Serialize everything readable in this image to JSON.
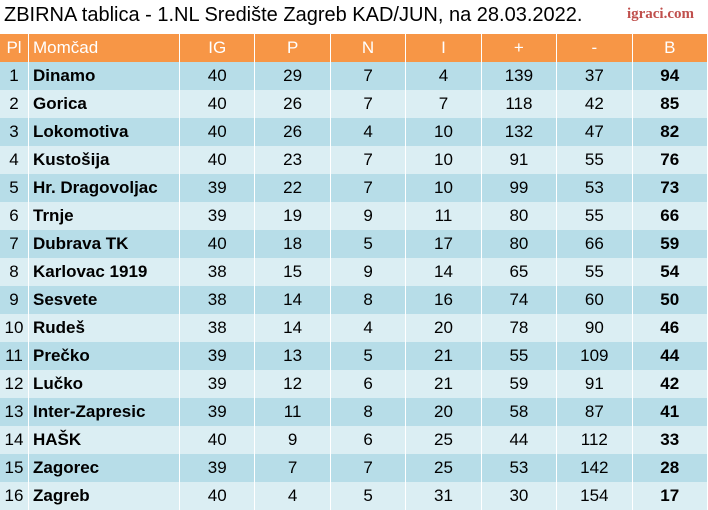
{
  "header": {
    "title": "ZBIRNA tablica - 1.NL Središte Zagreb KAD/JUN, na 28.03.2022.",
    "brand": "igraci.com"
  },
  "columns": [
    "Pl",
    "Momčad",
    "IG",
    "P",
    "N",
    "I",
    "+",
    "-",
    "B"
  ],
  "rows": [
    [
      "1",
      "Dinamo",
      "40",
      "29",
      "7",
      "4",
      "139",
      "37",
      "94"
    ],
    [
      "2",
      "Gorica",
      "40",
      "26",
      "7",
      "7",
      "118",
      "42",
      "85"
    ],
    [
      "3",
      "Lokomotiva",
      "40",
      "26",
      "4",
      "10",
      "132",
      "47",
      "82"
    ],
    [
      "4",
      "Kustošija",
      "40",
      "23",
      "7",
      "10",
      "91",
      "55",
      "76"
    ],
    [
      "5",
      "Hr. Dragovoljac",
      "39",
      "22",
      "7",
      "10",
      "99",
      "53",
      "73"
    ],
    [
      "6",
      "Trnje",
      "39",
      "19",
      "9",
      "11",
      "80",
      "55",
      "66"
    ],
    [
      "7",
      "Dubrava TK",
      "40",
      "18",
      "5",
      "17",
      "80",
      "66",
      "59"
    ],
    [
      "8",
      "Karlovac 1919",
      "38",
      "15",
      "9",
      "14",
      "65",
      "55",
      "54"
    ],
    [
      "9",
      "Sesvete",
      "38",
      "14",
      "8",
      "16",
      "74",
      "60",
      "50"
    ],
    [
      "10",
      "Rudeš",
      "38",
      "14",
      "4",
      "20",
      "78",
      "90",
      "46"
    ],
    [
      "11",
      "Prečko",
      "39",
      "13",
      "5",
      "21",
      "55",
      "109",
      "44"
    ],
    [
      "12",
      "Lučko",
      "39",
      "12",
      "6",
      "21",
      "59",
      "91",
      "42"
    ],
    [
      "13",
      "Inter-Zapresic",
      "39",
      "11",
      "8",
      "20",
      "58",
      "87",
      "41"
    ],
    [
      "14",
      "HAŠK",
      "40",
      "9",
      "6",
      "25",
      "44",
      "112",
      "33"
    ],
    [
      "15",
      "Zagorec",
      "39",
      "7",
      "7",
      "25",
      "53",
      "142",
      "28"
    ],
    [
      "16",
      "Zagreb",
      "40",
      "4",
      "5",
      "31",
      "30",
      "154",
      "17"
    ]
  ],
  "colors": {
    "header_bg": "#f79646",
    "row_dark": "#b7dde8",
    "row_light": "#dbeef3",
    "brand": "#c0504d"
  }
}
